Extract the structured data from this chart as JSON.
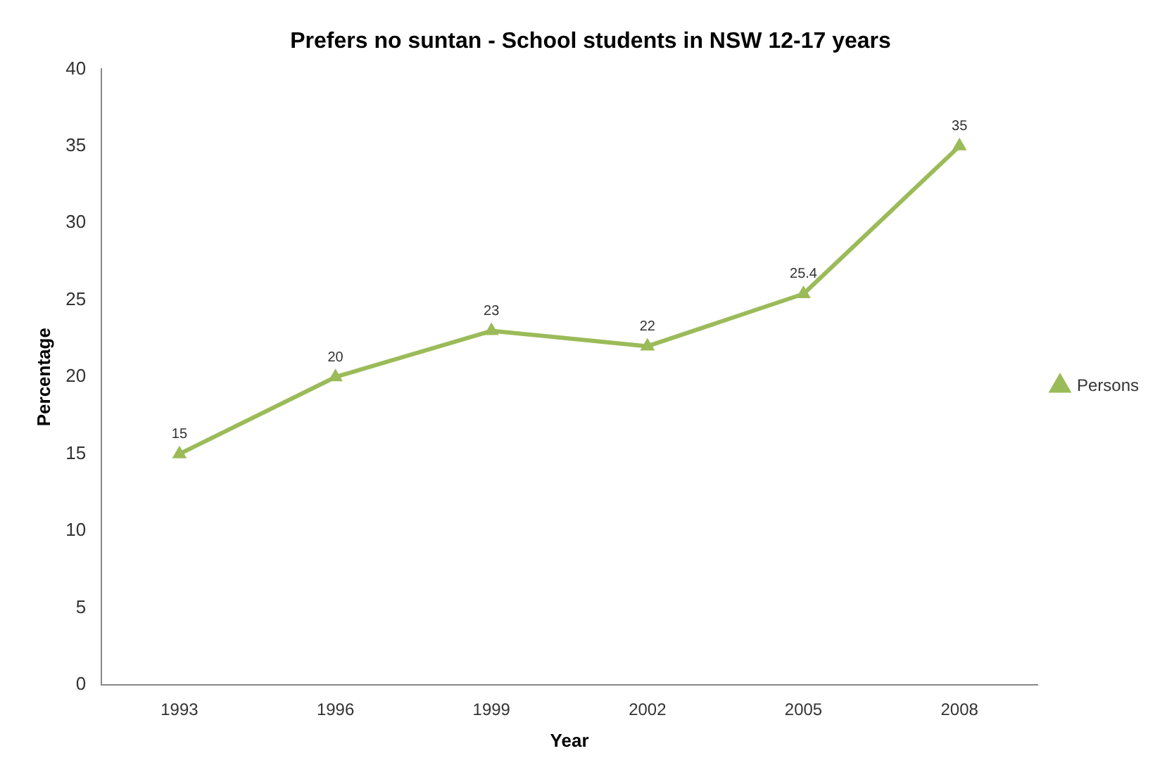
{
  "chart_data": {
    "type": "line",
    "title": "Prefers no suntan - School students in NSW 12-17 years",
    "xlabel": "Year",
    "ylabel": "Percentage",
    "categories": [
      "1993",
      "1996",
      "1999",
      "2002",
      "2005",
      "2008"
    ],
    "series": [
      {
        "name": "Persons",
        "color": "#9bbb59",
        "values": [
          15,
          20,
          23,
          22,
          25.4,
          35
        ]
      }
    ],
    "ylim": [
      0,
      40
    ],
    "yticks": [
      0,
      5,
      10,
      15,
      20,
      25,
      30,
      35,
      40
    ],
    "grid": false,
    "legend": "right",
    "marker": "triangle",
    "line_style": "solid",
    "data_labels": true
  }
}
